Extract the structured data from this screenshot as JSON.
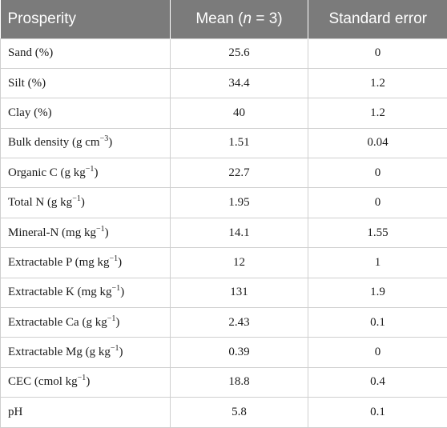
{
  "table": {
    "headers": {
      "col1": "Prosperity",
      "col2_prefix": "Mean (",
      "col2_var": "n",
      "col2_suffix": " = 3)",
      "col3": "Standard error"
    },
    "rows": [
      {
        "prop": "Sand (%)",
        "sup": "",
        "tail": "",
        "mean": "25.6",
        "se": "0"
      },
      {
        "prop": "Silt (%)",
        "sup": "",
        "tail": "",
        "mean": "34.4",
        "se": "1.2"
      },
      {
        "prop": "Clay (%)",
        "sup": "",
        "tail": "",
        "mean": "40",
        "se": "1.2"
      },
      {
        "prop": "Bulk density (g cm",
        "sup": "−3",
        "tail": ")",
        "mean": "1.51",
        "se": "0.04"
      },
      {
        "prop": "Organic C (g kg",
        "sup": "−1",
        "tail": ")",
        "mean": "22.7",
        "se": "0"
      },
      {
        "prop": "Total N (g kg",
        "sup": "−1",
        "tail": ")",
        "mean": "1.95",
        "se": "0"
      },
      {
        "prop": "Mineral-N (mg kg",
        "sup": "−1",
        "tail": ")",
        "mean": "14.1",
        "se": "1.55"
      },
      {
        "prop": "Extractable P (mg kg",
        "sup": "−1",
        "tail": ")",
        "mean": "12",
        "se": "1"
      },
      {
        "prop": "Extractable K (mg kg",
        "sup": "−1",
        "tail": ")",
        "mean": "131",
        "se": "1.9"
      },
      {
        "prop": "Extractable Ca (g kg",
        "sup": "−1",
        "tail": ")",
        "mean": "2.43",
        "se": "0.1"
      },
      {
        "prop": "Extractable Mg (g kg",
        "sup": "−1",
        "tail": ")",
        "mean": "0.39",
        "se": "0"
      },
      {
        "prop": "CEC (cmol kg",
        "sup": "−1",
        "tail": ")",
        "mean": "18.8",
        "se": "0.4"
      },
      {
        "prop": "pH",
        "sup": "",
        "tail": "",
        "mean": "5.8",
        "se": "0.1"
      }
    ]
  },
  "colors": {
    "header_bg": "#7b7b7b",
    "header_text": "#ffffff",
    "grid": "#cfcfcf"
  }
}
